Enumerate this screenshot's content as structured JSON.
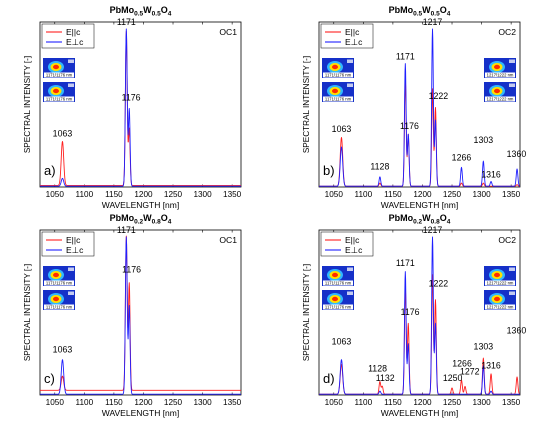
{
  "colors": {
    "parallel": "#ff1f1f",
    "perpendicular": "#1f1fff",
    "axis": "#000000",
    "beam_bg": "#1530c8"
  },
  "legend": {
    "parallel": "E||c",
    "perpendicular": "E⊥c"
  },
  "chart_data": [
    {
      "type": "line",
      "panel_label": "a)",
      "oc": "OC1",
      "title": {
        "base": "PbMo",
        "s1": "0.5",
        "mid": "W",
        "s2": "0.5",
        "end": "O",
        "s3": "4"
      },
      "xlabel": "WAVELENGTH [nm]",
      "ylabel": "SPECTRAL INTENSITY [-]",
      "xlim": [
        1025,
        1365
      ],
      "ylim": [
        0,
        1.05
      ],
      "xticks": [
        1050,
        1100,
        1150,
        1200,
        1250,
        1300,
        1350
      ],
      "yticks": [],
      "grid": false,
      "legend_position": "top-left",
      "beam_images": "left",
      "beam_captions": [
        "1171/1176 nm",
        "1171/1176 nm"
      ],
      "peak_labels": [
        {
          "text": "1063",
          "x": 1063,
          "y": 0.32
        },
        {
          "text": "1171",
          "x": 1171,
          "y": 1.03
        },
        {
          "text": "1176",
          "x": 1179,
          "y": 0.55
        }
      ],
      "series": [
        {
          "name": "E||c",
          "color": "#ff1f1f",
          "baseline": 0.01,
          "peaks": [
            {
              "x": 1063,
              "y": 0.28,
              "w": 3
            },
            {
              "x": 1171,
              "y": 0.98,
              "w": 2.2
            },
            {
              "x": 1176,
              "y": 0.36,
              "w": 2
            }
          ]
        },
        {
          "name": "E⊥c",
          "color": "#1f1fff",
          "baseline": 0.005,
          "peaks": [
            {
              "x": 1063,
              "y": 0.05,
              "w": 3
            },
            {
              "x": 1171,
              "y": 1.0,
              "w": 2.2
            },
            {
              "x": 1176,
              "y": 0.49,
              "w": 2
            }
          ]
        }
      ]
    },
    {
      "type": "line",
      "panel_label": "b)",
      "oc": "OC2",
      "title": {
        "base": "PbMo",
        "s1": "0.5",
        "mid": "W",
        "s2": "0.5",
        "end": "O",
        "s3": "4"
      },
      "xlabel": "WAVELENGTH [nm]",
      "ylabel": "SPECTRAL INTENSITY [-]",
      "xlim": [
        1025,
        1365
      ],
      "ylim": [
        0,
        1.05
      ],
      "xticks": [
        1050,
        1100,
        1150,
        1200,
        1250,
        1300,
        1350
      ],
      "yticks": [],
      "grid": false,
      "legend_position": "top-left",
      "beam_images": "left-and-right",
      "beam_captions": [
        "1171/1176 nm",
        "1171/1176 nm",
        "1217/1222 nm",
        "1217/1222 nm"
      ],
      "peak_labels": [
        {
          "text": "1063",
          "x": 1063,
          "y": 0.35
        },
        {
          "text": "1128",
          "x": 1128,
          "y": 0.11
        },
        {
          "text": "1171",
          "x": 1171,
          "y": 0.81
        },
        {
          "text": "1176",
          "x": 1178,
          "y": 0.37
        },
        {
          "text": "1217",
          "x": 1217,
          "y": 1.03
        },
        {
          "text": "1222",
          "x": 1227,
          "y": 0.56
        },
        {
          "text": "1266",
          "x": 1266,
          "y": 0.17
        },
        {
          "text": "1303",
          "x": 1303,
          "y": 0.28
        },
        {
          "text": "1316",
          "x": 1316,
          "y": 0.06
        },
        {
          "text": "1360",
          "x": 1359,
          "y": 0.19
        }
      ],
      "series": [
        {
          "name": "E||c",
          "color": "#ff1f1f",
          "baseline": 0.005,
          "peaks": [
            {
              "x": 1063,
              "y": 0.31,
              "w": 3
            },
            {
              "x": 1128,
              "y": 0.02,
              "w": 2
            },
            {
              "x": 1171,
              "y": 0.68,
              "w": 2
            },
            {
              "x": 1176,
              "y": 0.33,
              "w": 2
            },
            {
              "x": 1217,
              "y": 0.62,
              "w": 2
            },
            {
              "x": 1222,
              "y": 0.5,
              "w": 2
            },
            {
              "x": 1266,
              "y": 0.02,
              "w": 2
            },
            {
              "x": 1303,
              "y": 0.02,
              "w": 2
            },
            {
              "x": 1360,
              "y": 0.01,
              "w": 2
            }
          ]
        },
        {
          "name": "E⊥c",
          "color": "#1f1fff",
          "baseline": 0.005,
          "peaks": [
            {
              "x": 1063,
              "y": 0.25,
              "w": 3
            },
            {
              "x": 1128,
              "y": 0.06,
              "w": 2
            },
            {
              "x": 1171,
              "y": 0.78,
              "w": 2
            },
            {
              "x": 1176,
              "y": 0.33,
              "w": 2
            },
            {
              "x": 1217,
              "y": 1.0,
              "w": 2
            },
            {
              "x": 1222,
              "y": 0.42,
              "w": 2
            },
            {
              "x": 1266,
              "y": 0.12,
              "w": 2
            },
            {
              "x": 1303,
              "y": 0.16,
              "w": 2
            },
            {
              "x": 1316,
              "y": 0.03,
              "w": 2
            },
            {
              "x": 1360,
              "y": 0.11,
              "w": 2
            }
          ]
        }
      ]
    },
    {
      "type": "line",
      "panel_label": "c)",
      "oc": "OC1",
      "title": {
        "base": "PbMo",
        "s1": "0.2",
        "mid": "W",
        "s2": "0.8",
        "end": "O",
        "s3": "4"
      },
      "xlabel": "WAVELENGTH [nm]",
      "ylabel": "SPECTRAL INTENSITY [-]",
      "xlim": [
        1025,
        1365
      ],
      "ylim": [
        0,
        1.05
      ],
      "xticks": [
        1050,
        1100,
        1150,
        1200,
        1250,
        1300,
        1350
      ],
      "yticks": [],
      "grid": false,
      "legend_position": "top-left",
      "beam_images": "left",
      "beam_captions": [
        "1171/1176 nm",
        "1171/1176 nm"
      ],
      "peak_labels": [
        {
          "text": "1063",
          "x": 1063,
          "y": 0.27
        },
        {
          "text": "1171",
          "x": 1171,
          "y": 1.03
        },
        {
          "text": "1176",
          "x": 1180,
          "y": 0.78
        }
      ],
      "series": [
        {
          "name": "E||c",
          "color": "#ff1f1f",
          "baseline": 0.03,
          "peaks": [
            {
              "x": 1063,
              "y": 0.09,
              "w": 3
            },
            {
              "x": 1171,
              "y": 0.98,
              "w": 2.2
            },
            {
              "x": 1176,
              "y": 0.68,
              "w": 2
            }
          ]
        },
        {
          "name": "E⊥c",
          "color": "#1f1fff",
          "baseline": 0.005,
          "peaks": [
            {
              "x": 1063,
              "y": 0.22,
              "w": 3
            },
            {
              "x": 1171,
              "y": 1.0,
              "w": 2.2
            },
            {
              "x": 1176,
              "y": 0.56,
              "w": 2
            }
          ]
        }
      ]
    },
    {
      "type": "line",
      "panel_label": "d)",
      "oc": "OC2",
      "title": {
        "base": "PbMo",
        "s1": "0.2",
        "mid": "W",
        "s2": "0.8",
        "end": "O",
        "s3": "4"
      },
      "xlabel": "WAVELENGTH [nm]",
      "ylabel": "SPECTRAL INTENSITY [-]",
      "xlim": [
        1025,
        1365
      ],
      "ylim": [
        0,
        1.05
      ],
      "xticks": [
        1050,
        1100,
        1150,
        1200,
        1250,
        1300,
        1350
      ],
      "yticks": [],
      "grid": false,
      "legend_position": "top-left",
      "beam_images": "left-and-right",
      "beam_captions": [
        "1171/1176 nm",
        "1171/1176 nm",
        "1217/1222 nm",
        "1217/1222 nm"
      ],
      "peak_labels": [
        {
          "text": "1063",
          "x": 1063,
          "y": 0.32
        },
        {
          "text": "1128",
          "x": 1124,
          "y": 0.15
        },
        {
          "text": "1132",
          "x": 1137,
          "y": 0.09
        },
        {
          "text": "1171",
          "x": 1171,
          "y": 0.82
        },
        {
          "text": "1176",
          "x": 1179,
          "y": 0.51
        },
        {
          "text": "1217",
          "x": 1217,
          "y": 1.03
        },
        {
          "text": "1222",
          "x": 1227,
          "y": 0.69
        },
        {
          "text": "1250",
          "x": 1251,
          "y": 0.09
        },
        {
          "text": "1266",
          "x": 1267,
          "y": 0.18
        },
        {
          "text": "1272",
          "x": 1280,
          "y": 0.13
        },
        {
          "text": "1303",
          "x": 1303,
          "y": 0.29
        },
        {
          "text": "1316",
          "x": 1316,
          "y": 0.17
        },
        {
          "text": "1360",
          "x": 1359,
          "y": 0.39
        }
      ],
      "series": [
        {
          "name": "E||c",
          "color": "#ff1f1f",
          "baseline": 0.005,
          "peaks": [
            {
              "x": 1063,
              "y": 0.19,
              "w": 3
            },
            {
              "x": 1128,
              "y": 0.08,
              "w": 2
            },
            {
              "x": 1132,
              "y": 0.05,
              "w": 2
            },
            {
              "x": 1171,
              "y": 0.68,
              "w": 2
            },
            {
              "x": 1176,
              "y": 0.45,
              "w": 2
            },
            {
              "x": 1217,
              "y": 0.76,
              "w": 2
            },
            {
              "x": 1222,
              "y": 0.6,
              "w": 2
            },
            {
              "x": 1250,
              "y": 0.04,
              "w": 2
            },
            {
              "x": 1266,
              "y": 0.09,
              "w": 2
            },
            {
              "x": 1272,
              "y": 0.05,
              "w": 2
            },
            {
              "x": 1303,
              "y": 0.23,
              "w": 2
            },
            {
              "x": 1316,
              "y": 0.13,
              "w": 2
            },
            {
              "x": 1360,
              "y": 0.11,
              "w": 2
            }
          ]
        },
        {
          "name": "E⊥c",
          "color": "#1f1fff",
          "baseline": 0.005,
          "peaks": [
            {
              "x": 1063,
              "y": 0.22,
              "w": 3
            },
            {
              "x": 1128,
              "y": 0.02,
              "w": 2
            },
            {
              "x": 1171,
              "y": 0.78,
              "w": 2
            },
            {
              "x": 1176,
              "y": 0.32,
              "w": 2
            },
            {
              "x": 1217,
              "y": 1.0,
              "w": 2
            },
            {
              "x": 1222,
              "y": 0.45,
              "w": 2
            },
            {
              "x": 1303,
              "y": 0.18,
              "w": 2
            },
            {
              "x": 1316,
              "y": 0.02,
              "w": 2
            }
          ]
        }
      ]
    }
  ]
}
